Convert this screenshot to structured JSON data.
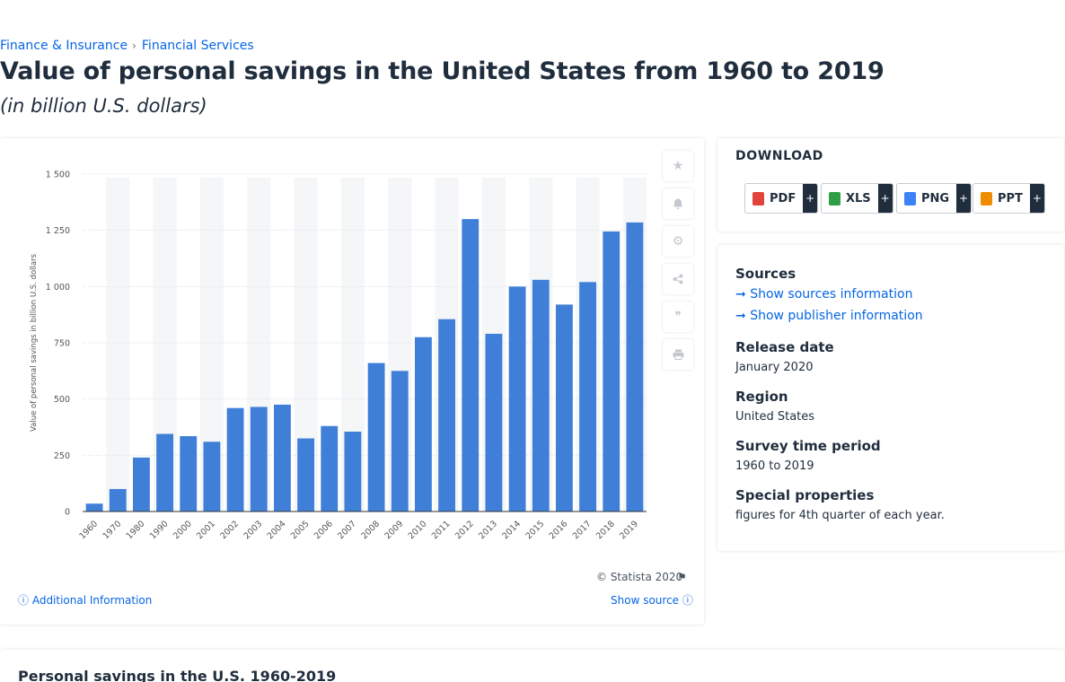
{
  "breadcrumb": {
    "items": [
      "Finance & Insurance",
      "Financial Services"
    ],
    "separator": "›"
  },
  "title": "Value of personal savings in the United States from 1960 to 2019",
  "subtitle": "(in billion U.S. dollars)",
  "chart_data": {
    "type": "bar",
    "categories": [
      "1960",
      "1970",
      "1980",
      "1990",
      "2000",
      "2001",
      "2002",
      "2003",
      "2004",
      "2005",
      "2006",
      "2007",
      "2008",
      "2009",
      "2010",
      "2011",
      "2012",
      "2013",
      "2014",
      "2015",
      "2016",
      "2017",
      "2018",
      "2019"
    ],
    "values": [
      35,
      100,
      240,
      345,
      335,
      310,
      460,
      465,
      475,
      325,
      380,
      355,
      660,
      625,
      775,
      855,
      1300,
      790,
      1000,
      1030,
      920,
      1020,
      1245,
      1285
    ],
    "xlabel": "",
    "ylabel": "Value of personal savings in billion U.S. dollars",
    "ylim": [
      0,
      1500
    ],
    "yticks": [
      0,
      250,
      500,
      750,
      1000,
      1250,
      1500
    ],
    "ytick_labels": [
      "0",
      "250",
      "500",
      "750",
      "1 000",
      "1 250",
      "1 500"
    ],
    "bar_color": "#3f7fd8",
    "grid": true,
    "legend": false
  },
  "chart_footer": {
    "copyright": "© Statista 2020",
    "additional_info": "Additional Information",
    "show_source": "Show source"
  },
  "toolbar": [
    "star-icon",
    "bell-icon",
    "gear-icon",
    "share-icon",
    "quote-icon",
    "print-icon"
  ],
  "download": {
    "title": "DOWNLOAD",
    "buttons": [
      {
        "label": "PDF",
        "color": "#e0443a"
      },
      {
        "label": "XLS",
        "color": "#2f9e44"
      },
      {
        "label": "PNG",
        "color": "#3b82f6"
      },
      {
        "label": "PPT",
        "color": "#f08c00"
      }
    ],
    "plus": "+"
  },
  "info": {
    "sources_heading": "Sources",
    "show_sources": "Show sources information",
    "show_publisher": "Show publisher information",
    "release_heading": "Release date",
    "release_value": "January 2020",
    "region_heading": "Region",
    "region_value": "United States",
    "survey_heading": "Survey time period",
    "survey_value": "1960 to 2019",
    "special_heading": "Special properties",
    "special_value": "figures for 4th quarter of each year."
  },
  "bottom": {
    "title": "Personal savings in the U.S. 1960-2019"
  }
}
